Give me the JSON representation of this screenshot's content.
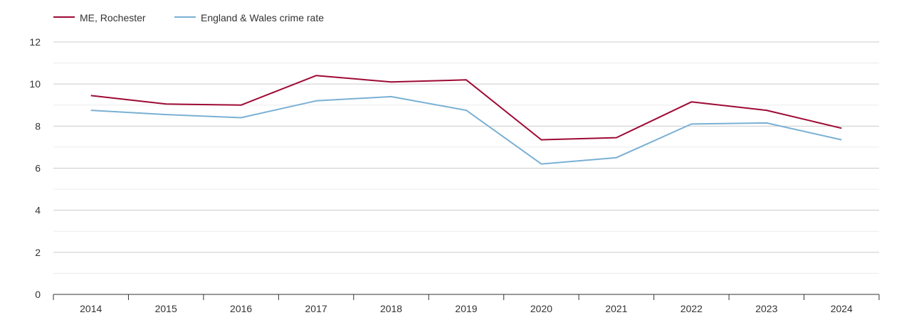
{
  "chart_data": {
    "type": "line",
    "x": [
      "2014",
      "2015",
      "2016",
      "2017",
      "2018",
      "2019",
      "2020",
      "2021",
      "2022",
      "2023",
      "2024"
    ],
    "series": [
      {
        "name": "ME, Rochester",
        "color": "#9e0a34",
        "values": [
          9.45,
          9.05,
          9.0,
          10.4,
          10.1,
          10.2,
          7.35,
          7.45,
          9.15,
          8.75,
          7.9
        ]
      },
      {
        "name": "England & Wales crime rate",
        "color": "#7ab0d4",
        "values": [
          8.75,
          8.55,
          8.4,
          9.2,
          9.4,
          8.75,
          6.2,
          6.5,
          8.1,
          8.15,
          7.35
        ]
      }
    ],
    "ylim": [
      0,
      12
    ],
    "yticks": [
      "0",
      "2",
      "4",
      "6",
      "8",
      "10",
      "12"
    ],
    "grid": true,
    "legend": "top-left"
  }
}
